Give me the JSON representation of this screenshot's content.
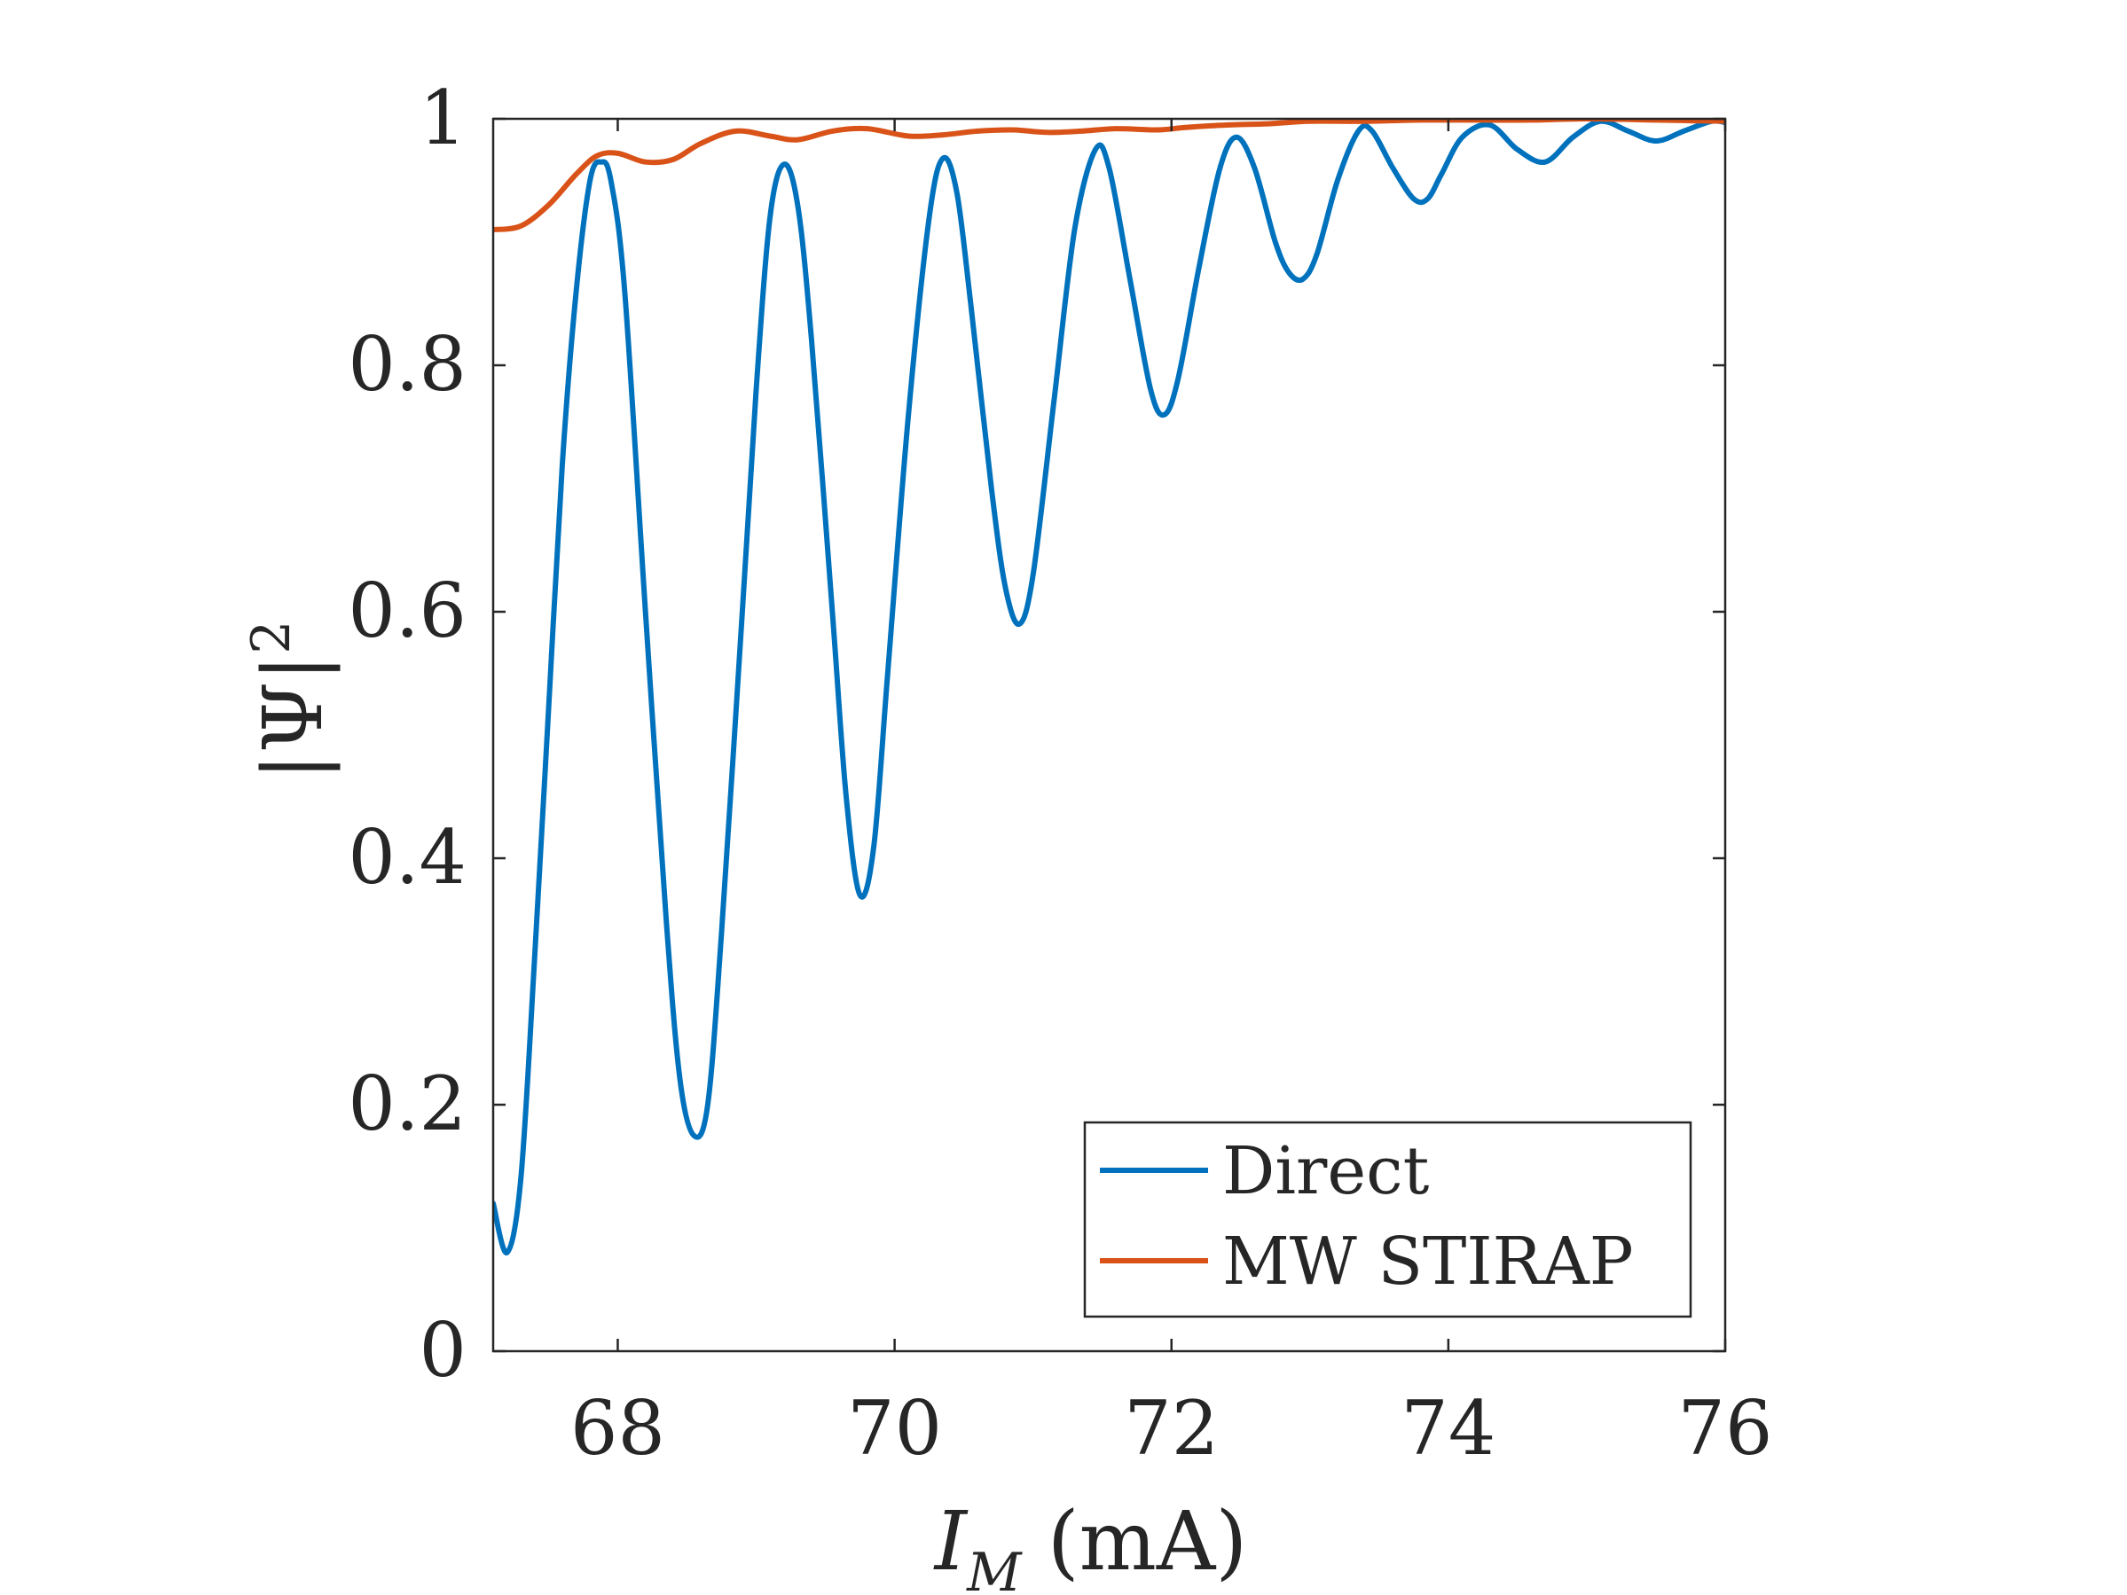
{
  "chart_data": {
    "type": "line",
    "xlabel": {
      "main": "I",
      "sub": "M",
      "unit": " (mA)"
    },
    "ylabel": {
      "main": "|Ψ|",
      "sup": "2"
    },
    "xlim": [
      67.1,
      76
    ],
    "ylim": [
      0,
      1
    ],
    "xticks": [
      "68",
      "70",
      "72",
      "74",
      "76"
    ],
    "yticks": [
      "0",
      "0.2",
      "0.4",
      "0.6",
      "0.8",
      "1"
    ],
    "grid": false,
    "legend_position": "bottom-right",
    "series": [
      {
        "name": "Direct",
        "color": "#0072bd",
        "points": [
          [
            67.1,
            0.12
          ],
          [
            67.2,
            0.08
          ],
          [
            67.3,
            0.14
          ],
          [
            67.4,
            0.32
          ],
          [
            67.5,
            0.52
          ],
          [
            67.6,
            0.72
          ],
          [
            67.7,
            0.86
          ],
          [
            67.8,
            0.95
          ],
          [
            67.88,
            0.965
          ],
          [
            67.95,
            0.95
          ],
          [
            68.05,
            0.86
          ],
          [
            68.2,
            0.6
          ],
          [
            68.35,
            0.35
          ],
          [
            68.45,
            0.22
          ],
          [
            68.55,
            0.175
          ],
          [
            68.65,
            0.2
          ],
          [
            68.75,
            0.34
          ],
          [
            68.9,
            0.6
          ],
          [
            69.0,
            0.78
          ],
          [
            69.1,
            0.92
          ],
          [
            69.2,
            0.963
          ],
          [
            69.3,
            0.93
          ],
          [
            69.4,
            0.82
          ],
          [
            69.55,
            0.6
          ],
          [
            69.65,
            0.45
          ],
          [
            69.75,
            0.37
          ],
          [
            69.85,
            0.41
          ],
          [
            69.95,
            0.55
          ],
          [
            70.1,
            0.76
          ],
          [
            70.25,
            0.92
          ],
          [
            70.35,
            0.968
          ],
          [
            70.45,
            0.94
          ],
          [
            70.55,
            0.85
          ],
          [
            70.7,
            0.7
          ],
          [
            70.8,
            0.62
          ],
          [
            70.9,
            0.59
          ],
          [
            71.0,
            0.63
          ],
          [
            71.15,
            0.77
          ],
          [
            71.3,
            0.91
          ],
          [
            71.45,
            0.975
          ],
          [
            71.55,
            0.96
          ],
          [
            71.7,
            0.87
          ],
          [
            71.85,
            0.78
          ],
          [
            71.95,
            0.76
          ],
          [
            72.05,
            0.79
          ],
          [
            72.2,
            0.88
          ],
          [
            72.35,
            0.96
          ],
          [
            72.47,
            0.985
          ],
          [
            72.6,
            0.96
          ],
          [
            72.75,
            0.9
          ],
          [
            72.85,
            0.875
          ],
          [
            72.95,
            0.87
          ],
          [
            73.05,
            0.89
          ],
          [
            73.2,
            0.95
          ],
          [
            73.35,
            0.99
          ],
          [
            73.45,
            0.99
          ],
          [
            73.6,
            0.96
          ],
          [
            73.75,
            0.935
          ],
          [
            73.85,
            0.935
          ],
          [
            73.95,
            0.955
          ],
          [
            74.1,
            0.985
          ],
          [
            74.3,
            0.995
          ],
          [
            74.5,
            0.975
          ],
          [
            74.7,
            0.965
          ],
          [
            74.9,
            0.985
          ],
          [
            75.1,
            0.998
          ],
          [
            75.3,
            0.99
          ],
          [
            75.5,
            0.982
          ],
          [
            75.7,
            0.99
          ],
          [
            75.9,
            0.998
          ],
          [
            76.0,
            0.997
          ]
        ]
      },
      {
        "name": "MW STIRAP",
        "color": "#d95319",
        "points": [
          [
            67.1,
            0.91
          ],
          [
            67.3,
            0.913
          ],
          [
            67.5,
            0.93
          ],
          [
            67.7,
            0.955
          ],
          [
            67.85,
            0.97
          ],
          [
            68.0,
            0.972
          ],
          [
            68.2,
            0.965
          ],
          [
            68.4,
            0.967
          ],
          [
            68.6,
            0.98
          ],
          [
            68.85,
            0.99
          ],
          [
            69.1,
            0.986
          ],
          [
            69.3,
            0.983
          ],
          [
            69.55,
            0.99
          ],
          [
            69.8,
            0.992
          ],
          [
            70.1,
            0.986
          ],
          [
            70.35,
            0.987
          ],
          [
            70.6,
            0.99
          ],
          [
            70.85,
            0.991
          ],
          [
            71.1,
            0.989
          ],
          [
            71.35,
            0.99
          ],
          [
            71.6,
            0.992
          ],
          [
            71.9,
            0.991
          ],
          [
            72.1,
            0.993
          ],
          [
            72.4,
            0.995
          ],
          [
            72.7,
            0.996
          ],
          [
            73.0,
            0.998
          ],
          [
            73.4,
            0.998
          ],
          [
            73.8,
            0.999
          ],
          [
            74.2,
            0.999
          ],
          [
            74.6,
            0.999
          ],
          [
            75.0,
            1.0
          ],
          [
            75.5,
            0.999
          ],
          [
            76.0,
            0.998
          ]
        ]
      }
    ]
  }
}
